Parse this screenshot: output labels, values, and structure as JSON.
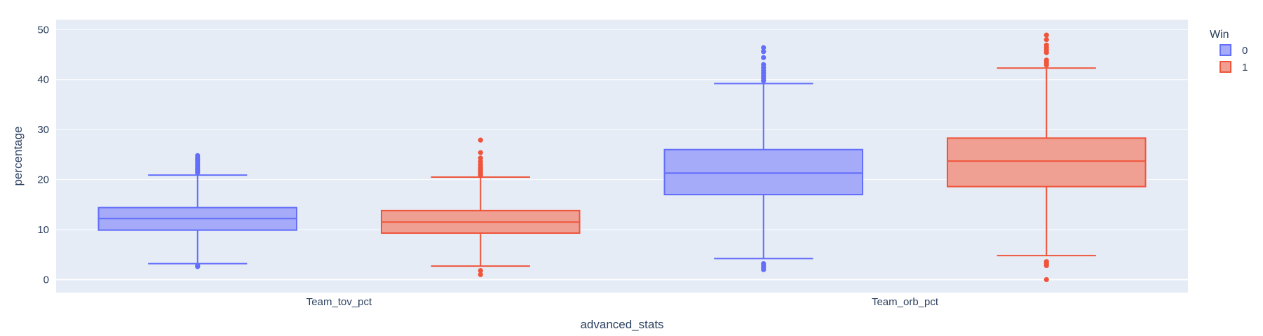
{
  "chart_data": {
    "type": "box",
    "title": "",
    "xlabel": "advanced_stats",
    "ylabel": "percentage",
    "ylim": [
      -2.6,
      52
    ],
    "yticks": [
      0,
      10,
      20,
      30,
      40,
      50
    ],
    "grid": true,
    "legend_title": "Win",
    "legend_placement": "top-right",
    "categories": [
      "Team_tov_pct",
      "Team_orb_pct"
    ],
    "series": [
      {
        "name": "0",
        "color": "#636efa",
        "fill": "#a5abf9",
        "boxes": [
          {
            "category": "Team_tov_pct",
            "whisker_low": 3.2,
            "q1": 9.9,
            "median": 12.2,
            "q3": 14.4,
            "whisker_high": 20.9,
            "outliers": [
              2.6,
              2.8,
              21.4,
              21.8,
              22.2,
              22.7,
              23.1,
              23.5,
              23.9,
              24.3,
              24.8
            ]
          },
          {
            "category": "Team_orb_pct",
            "whisker_low": 4.2,
            "q1": 17.0,
            "median": 21.3,
            "q3": 26.0,
            "whisker_high": 39.2,
            "outliers": [
              2.0,
              2.4,
              2.8,
              3.2,
              39.8,
              40.3,
              40.8,
              41.3,
              41.8,
              42.4,
              43.0,
              44.4,
              45.6,
              46.4
            ]
          }
        ]
      },
      {
        "name": "1",
        "color": "#ef553b",
        "fill": "#f09f93",
        "boxes": [
          {
            "category": "Team_tov_pct",
            "whisker_low": 2.7,
            "q1": 9.3,
            "median": 11.5,
            "q3": 13.8,
            "whisker_high": 20.5,
            "outliers": [
              1.0,
              1.8,
              20.9,
              21.3,
              21.7,
              22.1,
              22.5,
              23.0,
              23.6,
              24.3,
              25.4,
              27.9
            ]
          },
          {
            "category": "Team_orb_pct",
            "whisker_low": 4.8,
            "q1": 18.6,
            "median": 23.7,
            "q3": 28.3,
            "whisker_high": 42.3,
            "outliers": [
              0.0,
              2.8,
              3.2,
              3.6,
              42.9,
              43.4,
              43.9,
              45.4,
              45.9,
              46.4,
              46.9,
              48.0,
              48.9
            ]
          }
        ]
      }
    ]
  }
}
